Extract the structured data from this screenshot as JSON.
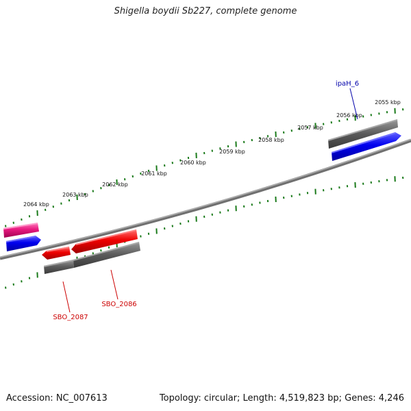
{
  "title": "Shigella boydii Sb227, complete genome",
  "footer": {
    "accession": "Accession: NC_007613",
    "summary": "Topology: circular; Length: 4,519,823 bp; Genes: 4,246"
  },
  "kbp_labels": [
    "2064 kbp",
    "2063 kbp",
    "2062 kbp",
    "2061 kbp",
    "2060 kbp",
    "2059 kbp",
    "2058 kbp",
    "2057 kbp",
    "2056 kbp",
    "2055 kbp"
  ],
  "gene_labels": {
    "ipaH_6": "ipaH_6",
    "SBO_2086": "SBO_2086",
    "SBO_2087": "SBO_2087"
  },
  "colors": {
    "backbone": "#808080",
    "tick": "#1a7a1a",
    "cds_gray": "#5a5a5a",
    "cds_blue": "#0000ee",
    "cds_red": "#ee0000",
    "cds_pink": "#e8197f",
    "label_blue": "#0000aa",
    "label_red": "#cc0000"
  }
}
